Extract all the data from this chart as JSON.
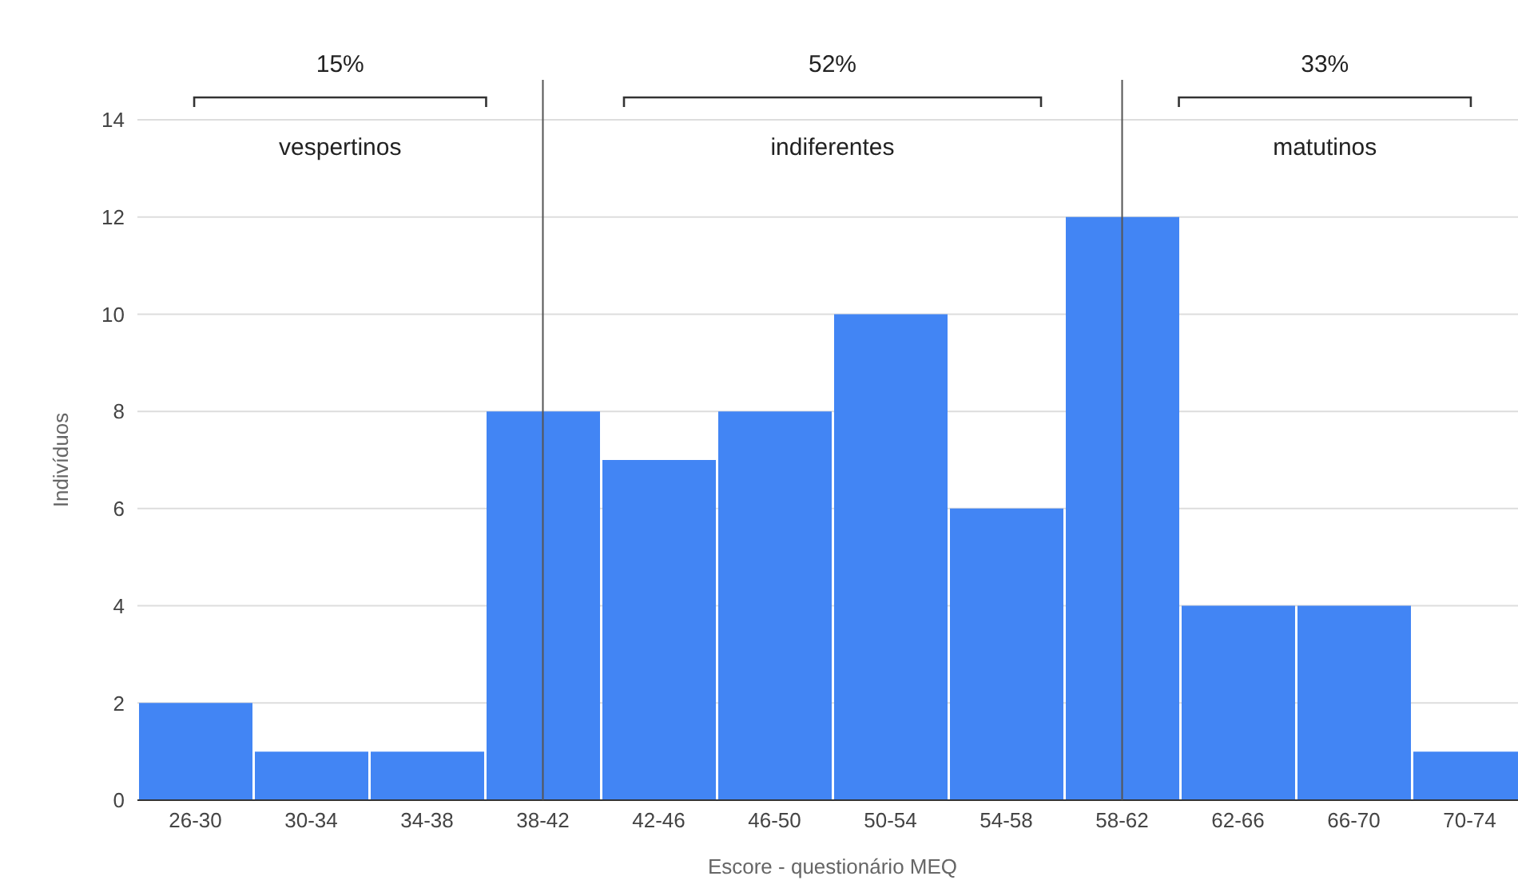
{
  "chart_data": {
    "type": "bar",
    "xlabel": "Escore - questionário MEQ",
    "ylabel": "Indivíduos",
    "categories": [
      "26-30",
      "30-34",
      "34-38",
      "38-42",
      "42-46",
      "46-50",
      "50-54",
      "54-58",
      "58-62",
      "62-66",
      "66-70",
      "70-74"
    ],
    "values": [
      2,
      1,
      1,
      8,
      7,
      8,
      10,
      6,
      12,
      4,
      4,
      1
    ],
    "color": "#4285f4",
    "ylim": [
      0,
      14
    ],
    "yticks": [
      0,
      2,
      4,
      6,
      8,
      10,
      12,
      14
    ],
    "grid": "y",
    "ref_lines": [
      {
        "axis": "x",
        "value": "38-42",
        "color": "#555555"
      },
      {
        "axis": "x",
        "value": "58-62",
        "color": "#555555"
      }
    ],
    "annotations": [
      "15%",
      "vespertinos",
      "52%",
      "indiferentes",
      "33%",
      "matutinos"
    ]
  }
}
